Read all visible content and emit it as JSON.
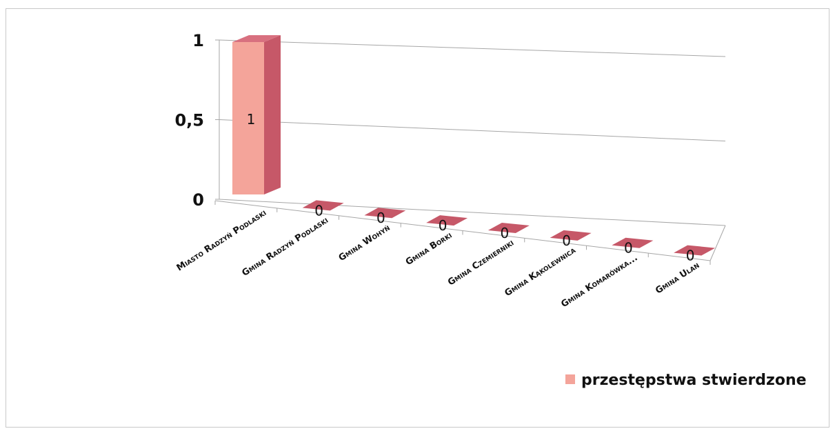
{
  "chart_data": {
    "type": "bar",
    "categories": [
      "Miasto Radzyń Podlaski",
      "Gmina Radzyń Podlaski",
      "Gmina  Wohyń",
      "Gmina Borki",
      "Gmina Czemierniki",
      "Gmina Kąkolewnica",
      "Gmina Komarówka...",
      "Gmina Ulan"
    ],
    "series": [
      {
        "name": "przestępstwa stwierdzone",
        "values": [
          1,
          0,
          0,
          0,
          0,
          0,
          0,
          0
        ]
      }
    ],
    "data_labels": [
      "1",
      "0",
      "0",
      "0",
      "0",
      "0",
      "0",
      "0"
    ],
    "ylim": [
      0,
      1
    ],
    "yticks": [
      "0",
      "0,5",
      "1"
    ],
    "grid": true,
    "legend_position": "bottom-right",
    "colors": {
      "bar_front": "#f4a49a",
      "bar_side": "#c65868",
      "bar_top": "#d8707f",
      "grid": "#a6a6a6"
    }
  }
}
